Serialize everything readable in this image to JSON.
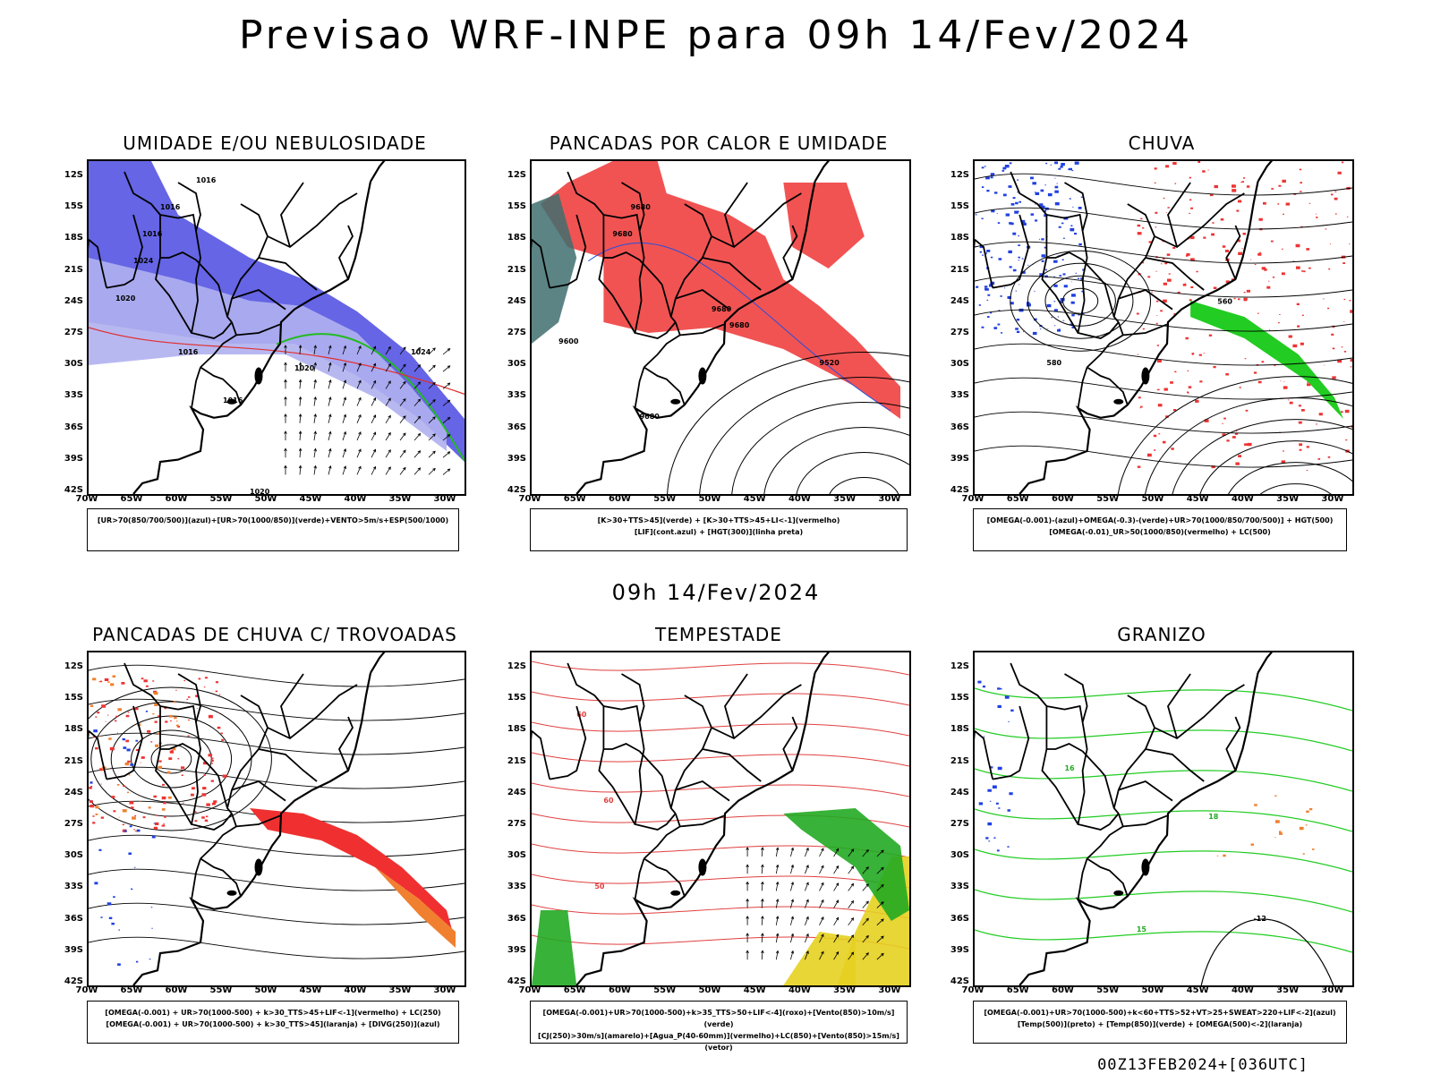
{
  "main_title": "Previsao WRF-INPE  para 09h 14/Fev/2024",
  "mid_title": "09h 14/Fev/2024",
  "footer": "00Z13FEB2024+[036UTC]",
  "lat_ticks": [
    "12S",
    "15S",
    "18S",
    "21S",
    "24S",
    "27S",
    "30S",
    "33S",
    "36S",
    "39S",
    "42S"
  ],
  "lon_ticks": [
    "70W",
    "65W",
    "60W",
    "55W",
    "50W",
    "45W",
    "40W",
    "35W",
    "30W"
  ],
  "panels": [
    {
      "title": "UMIDADE E/OU NEBULOSIDADE",
      "legend_line1": "[UR>70(850/700/500)](azul)+[UR>70(1000/850)](verde)+VENTO>5m/s+ESP(500/1000)",
      "legend_line2": "",
      "contour_labels": [
        "1016",
        "1016",
        "1016",
        "1024",
        "1020",
        "1016",
        "1020",
        "1024",
        "1016",
        "1020"
      ]
    },
    {
      "title": "PANCADAS POR CALOR E UMIDADE",
      "legend_line1": "[K>30+TTS>45](verde) + [K>30+TTS>45+LI<-1](vermelho)",
      "legend_line2": "[LIF](cont.azul) + [HGT(300)](linha preta)",
      "contour_labels": [
        "9680",
        "9680",
        "9680",
        "9680",
        "9600",
        "9520",
        "9680"
      ]
    },
    {
      "title": "CHUVA",
      "legend_line1": "[OMEGA(-0.001)-(azul)+OMEGA(-0.3)-(verde)+UR>70(1000/850/700/500)] + HGT(500)",
      "legend_line2": "[OMEGA(-0.01)_UR>50(1000/850)(vermelho) + LC(500)",
      "contour_labels": [
        "560",
        "580"
      ]
    },
    {
      "title": "PANCADAS DE CHUVA C/ TROVOADAS",
      "legend_line1": "[OMEGA(-0.001) + UR>70(1000-500) + k>30_TTS>45+LIF<-1](vermelho) + LC(250)",
      "legend_line2": "[OMEGA(-0.001) + UR>70(1000-500) + k>30_TTS>45](laranja) + [DIVG(250)](azul)",
      "contour_labels": []
    },
    {
      "title": "TEMPESTADE",
      "legend_line1": "[OMEGA(-0.001)+UR>70(1000-500)+k>35_TTS>50+LIF<-4](roxo)+[Vento(850)>10m/s](verde)",
      "legend_line2": "[CJ(250)>30m/s](amarelo)+[Agua_P(40-60mm)](vermelho)+LC(850)+[Vento(850)>15m/s](vetor)",
      "contour_labels": [
        "60",
        "60",
        "50"
      ]
    },
    {
      "title": "GRANIZO",
      "legend_line1": "[OMEGA(-0.001)+UR>70(1000-500)+k<60+TTS>52+VT>25+SWEAT>220+LIF<-2](azul)",
      "legend_line2": "[Temp(500)](preto) + [Temp(850)](verde) + [OMEGA(500)<-2](laranja)",
      "contour_labels": [
        "-12",
        "16",
        "18",
        "15"
      ]
    }
  ]
}
